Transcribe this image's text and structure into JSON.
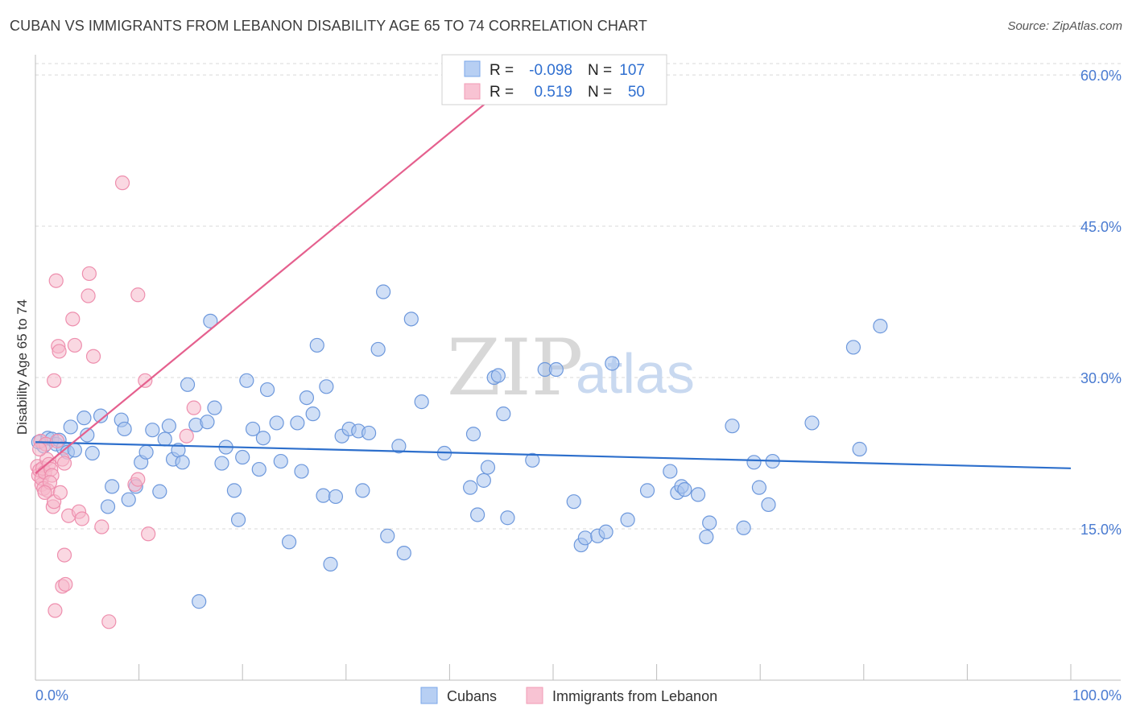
{
  "header": {
    "title": "CUBAN VS IMMIGRANTS FROM LEBANON DISABILITY AGE 65 TO 74 CORRELATION CHART",
    "source": "Source: ZipAtlas.com"
  },
  "watermark": {
    "zip": "ZIP",
    "atlas": "atlas"
  },
  "legend": {
    "rows": [
      {
        "r_label": "R =",
        "r_value": "-0.098",
        "n_label": "N =",
        "n_value": "107",
        "color": "#7ba7e8"
      },
      {
        "r_label": "R =",
        "r_value": "0.519",
        "n_label": "N =",
        "n_value": "50",
        "color": "#f29bb6"
      }
    ]
  },
  "bottom_legend": {
    "items": [
      "Cubans",
      "Immigrants from Lebanon"
    ]
  },
  "colors": {
    "blue_fill": "#a9c4ef",
    "blue_stroke": "#6d98dc",
    "blue_line": "#2d6fcc",
    "pink_fill": "#f6b8cb",
    "pink_stroke": "#ee8fae",
    "pink_line": "#e5608e",
    "grid": "#d9d9d9",
    "axis_text": "#4a7bd1"
  },
  "chart_data": {
    "type": "scatter",
    "title": "CUBAN VS IMMIGRANTS FROM LEBANON DISABILITY AGE 65 TO 74 CORRELATION CHART",
    "xlabel": "",
    "ylabel": "Disability Age 65 to 74",
    "xlim": [
      0,
      100
    ],
    "ylim": [
      0,
      62
    ],
    "x_tick_labels": [
      "0.0%",
      "100.0%"
    ],
    "y_ticks": [
      15,
      30,
      45,
      60
    ],
    "y_tick_labels": [
      "15.0%",
      "30.0%",
      "45.0%",
      "60.0%"
    ],
    "grid": true,
    "legend_position": "top-center",
    "series": [
      {
        "name": "Cubans",
        "r": -0.098,
        "n": 107,
        "trend": {
          "x": [
            0,
            100
          ],
          "y": [
            23.6,
            21.0
          ]
        },
        "points": [
          [
            0.3,
            23.6
          ],
          [
            0.8,
            23.2
          ],
          [
            1.2,
            24.0
          ],
          [
            1.6,
            23.9
          ],
          [
            2.0,
            23.4
          ],
          [
            2.3,
            23.8
          ],
          [
            2.7,
            23.0
          ],
          [
            3.1,
            22.6
          ],
          [
            3.4,
            25.1
          ],
          [
            3.8,
            22.8
          ],
          [
            4.7,
            26.0
          ],
          [
            5.0,
            24.3
          ],
          [
            5.5,
            22.5
          ],
          [
            6.3,
            26.2
          ],
          [
            7.0,
            17.2
          ],
          [
            7.4,
            19.2
          ],
          [
            8.3,
            25.8
          ],
          [
            8.6,
            24.9
          ],
          [
            9.0,
            17.9
          ],
          [
            9.7,
            19.2
          ],
          [
            10.2,
            21.6
          ],
          [
            10.7,
            22.6
          ],
          [
            11.3,
            24.8
          ],
          [
            12.0,
            18.7
          ],
          [
            12.5,
            23.9
          ],
          [
            12.9,
            25.2
          ],
          [
            13.3,
            21.9
          ],
          [
            13.8,
            22.8
          ],
          [
            14.2,
            21.6
          ],
          [
            14.7,
            29.3
          ],
          [
            15.5,
            25.3
          ],
          [
            15.8,
            7.8
          ],
          [
            16.6,
            25.6
          ],
          [
            16.9,
            35.6
          ],
          [
            17.3,
            27.0
          ],
          [
            18.0,
            21.5
          ],
          [
            18.4,
            23.1
          ],
          [
            19.2,
            18.8
          ],
          [
            19.6,
            15.9
          ],
          [
            20.0,
            22.1
          ],
          [
            20.4,
            29.7
          ],
          [
            21.0,
            24.9
          ],
          [
            21.6,
            20.9
          ],
          [
            22.0,
            24.0
          ],
          [
            22.4,
            28.8
          ],
          [
            23.3,
            25.5
          ],
          [
            23.7,
            21.7
          ],
          [
            24.5,
            13.7
          ],
          [
            25.3,
            25.5
          ],
          [
            25.7,
            20.7
          ],
          [
            26.2,
            28.0
          ],
          [
            26.8,
            26.4
          ],
          [
            27.2,
            33.2
          ],
          [
            27.8,
            18.3
          ],
          [
            28.1,
            29.1
          ],
          [
            28.5,
            11.5
          ],
          [
            29.0,
            18.2
          ],
          [
            29.6,
            24.2
          ],
          [
            30.3,
            24.9
          ],
          [
            31.6,
            18.8
          ],
          [
            31.2,
            24.7
          ],
          [
            32.2,
            24.5
          ],
          [
            33.1,
            32.8
          ],
          [
            33.6,
            38.5
          ],
          [
            34.0,
            14.3
          ],
          [
            35.1,
            23.2
          ],
          [
            35.6,
            12.6
          ],
          [
            36.3,
            35.8
          ],
          [
            37.3,
            27.6
          ],
          [
            39.5,
            22.5
          ],
          [
            42.0,
            19.1
          ],
          [
            42.3,
            24.4
          ],
          [
            42.7,
            16.4
          ],
          [
            43.3,
            19.8
          ],
          [
            43.7,
            21.1
          ],
          [
            44.3,
            30.0
          ],
          [
            44.7,
            30.2
          ],
          [
            45.2,
            26.4
          ],
          [
            45.6,
            16.1
          ],
          [
            48.0,
            21.8
          ],
          [
            49.2,
            30.8
          ],
          [
            50.3,
            30.8
          ],
          [
            52.0,
            17.7
          ],
          [
            52.7,
            13.4
          ],
          [
            53.1,
            14.1
          ],
          [
            54.3,
            14.3
          ],
          [
            55.1,
            14.7
          ],
          [
            55.7,
            31.4
          ],
          [
            57.2,
            15.9
          ],
          [
            59.1,
            18.8
          ],
          [
            61.3,
            20.7
          ],
          [
            62.0,
            18.6
          ],
          [
            62.4,
            19.2
          ],
          [
            62.7,
            18.9
          ],
          [
            64.0,
            18.4
          ],
          [
            64.8,
            14.2
          ],
          [
            65.1,
            15.6
          ],
          [
            67.3,
            25.2
          ],
          [
            68.4,
            15.1
          ],
          [
            69.4,
            21.6
          ],
          [
            69.9,
            19.1
          ],
          [
            70.8,
            17.4
          ],
          [
            71.2,
            21.7
          ],
          [
            75.0,
            25.5
          ],
          [
            79.0,
            33.0
          ],
          [
            79.6,
            22.9
          ],
          [
            81.6,
            35.1
          ]
        ]
      },
      {
        "name": "Immigrants from Lebanon",
        "r": 0.519,
        "n": 50,
        "trend": {
          "x": [
            0,
            48
          ],
          "y": [
            20.5,
            61.0
          ]
        },
        "points": [
          [
            0.2,
            21.2
          ],
          [
            0.3,
            20.3
          ],
          [
            0.4,
            20.8
          ],
          [
            0.5,
            23.7
          ],
          [
            0.6,
            19.4
          ],
          [
            0.6,
            20.0
          ],
          [
            0.7,
            21.0
          ],
          [
            0.8,
            19.0
          ],
          [
            0.9,
            20.6
          ],
          [
            1.0,
            23.4
          ],
          [
            1.1,
            21.9
          ],
          [
            1.2,
            18.8
          ],
          [
            1.3,
            21.4
          ],
          [
            1.5,
            20.9
          ],
          [
            1.6,
            20.3
          ],
          [
            1.7,
            17.2
          ],
          [
            1.8,
            17.7
          ],
          [
            1.8,
            29.7
          ],
          [
            1.9,
            6.9
          ],
          [
            2.1,
            23.7
          ],
          [
            2.0,
            39.6
          ],
          [
            2.2,
            33.1
          ],
          [
            2.3,
            32.6
          ],
          [
            2.4,
            18.6
          ],
          [
            2.6,
            9.3
          ],
          [
            2.8,
            12.4
          ],
          [
            2.9,
            9.5
          ],
          [
            2.6,
            21.9
          ],
          [
            2.8,
            21.5
          ],
          [
            3.2,
            16.3
          ],
          [
            3.6,
            35.8
          ],
          [
            3.8,
            33.2
          ],
          [
            4.2,
            16.7
          ],
          [
            4.5,
            16.0
          ],
          [
            5.2,
            40.3
          ],
          [
            5.1,
            38.1
          ],
          [
            5.6,
            32.1
          ],
          [
            6.4,
            15.2
          ],
          [
            7.1,
            5.8
          ],
          [
            8.4,
            49.3
          ],
          [
            9.6,
            19.4
          ],
          [
            9.9,
            19.9
          ],
          [
            9.9,
            38.2
          ],
          [
            10.6,
            29.7
          ],
          [
            10.9,
            14.5
          ],
          [
            14.6,
            24.2
          ],
          [
            15.3,
            27.0
          ],
          [
            0.4,
            22.9
          ],
          [
            1.4,
            19.6
          ],
          [
            0.9,
            18.6
          ]
        ]
      }
    ]
  }
}
